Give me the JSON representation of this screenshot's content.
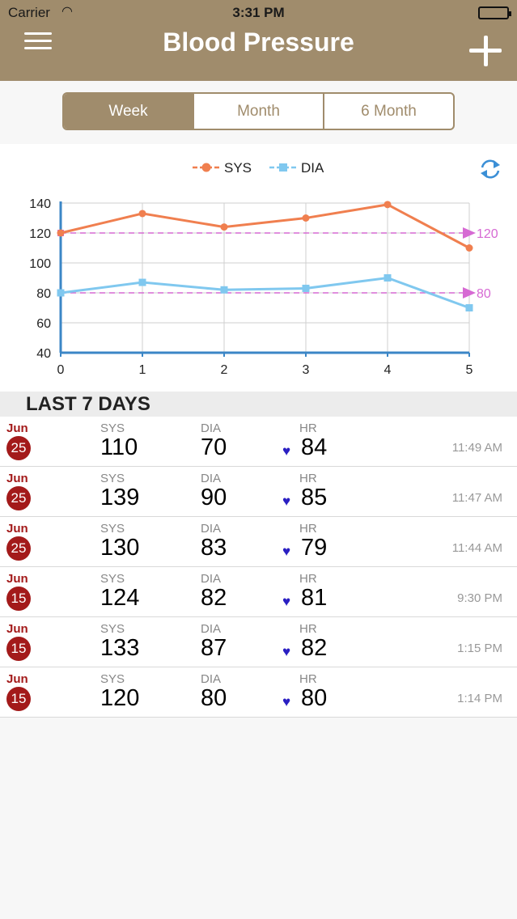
{
  "status_bar": {
    "carrier": "Carrier",
    "time": "3:31 PM"
  },
  "header": {
    "title": "Blood Pressure",
    "menu_icon": "menu-icon",
    "add_icon": "plus-icon",
    "background_color": "#a08c6c"
  },
  "tabs": [
    {
      "label": "Week",
      "active": true
    },
    {
      "label": "Month",
      "active": false
    },
    {
      "label": "6 Month",
      "active": false
    }
  ],
  "refresh_icon": "refresh-icon",
  "chart_data": {
    "type": "line",
    "x": [
      0,
      1,
      2,
      3,
      4,
      5
    ],
    "series": [
      {
        "name": "SYS",
        "values": [
          120,
          133,
          124,
          130,
          139,
          110
        ],
        "color": "#f07f4f",
        "marker": "circle"
      },
      {
        "name": "DIA",
        "values": [
          80,
          87,
          82,
          83,
          90,
          70
        ],
        "color": "#80c8ef",
        "marker": "square"
      }
    ],
    "reference_lines": [
      {
        "value": 120,
        "label": "120",
        "color": "#d66ad3"
      },
      {
        "value": 80,
        "label": "80",
        "color": "#d66ad3"
      }
    ],
    "xlim": [
      0,
      5
    ],
    "ylim": [
      40,
      140
    ],
    "x_ticks": [
      "0",
      "1",
      "2",
      "3",
      "4",
      "5"
    ],
    "y_ticks": [
      "40",
      "60",
      "80",
      "100",
      "120",
      "140"
    ],
    "grid": true,
    "legend": "top-center"
  },
  "list": {
    "header": "LAST 7 DAYS",
    "labels": {
      "sys": "SYS",
      "dia": "DIA",
      "hr": "HR"
    },
    "rows": [
      {
        "month": "Jun",
        "day": "25",
        "sys": "110",
        "dia": "70",
        "hr": "84",
        "time": "11:49 AM"
      },
      {
        "month": "Jun",
        "day": "25",
        "sys": "139",
        "dia": "90",
        "hr": "85",
        "time": "11:47 AM"
      },
      {
        "month": "Jun",
        "day": "25",
        "sys": "130",
        "dia": "83",
        "hr": "79",
        "time": "11:44 AM"
      },
      {
        "month": "Jun",
        "day": "15",
        "sys": "124",
        "dia": "82",
        "hr": "81",
        "time": "9:30 PM"
      },
      {
        "month": "Jun",
        "day": "15",
        "sys": "133",
        "dia": "87",
        "hr": "82",
        "time": "1:15 PM"
      },
      {
        "month": "Jun",
        "day": "15",
        "sys": "120",
        "dia": "80",
        "hr": "80",
        "time": "1:14 PM"
      }
    ]
  }
}
